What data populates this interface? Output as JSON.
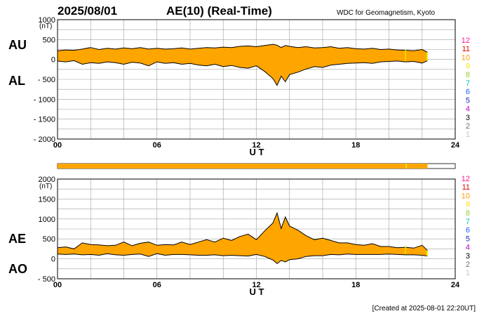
{
  "header": {
    "date": "2025/08/01",
    "title": "AE(10) (Real-Time)",
    "source": "WDC for Geomagnetism, Kyoto"
  },
  "footer": {
    "created": "[Created at 2025-08-01 22:20UT]"
  },
  "station_scale": {
    "labels": [
      "12",
      "11",
      "10",
      "9",
      "8",
      "7",
      "6",
      "5",
      "4",
      "3",
      "2",
      "1"
    ],
    "colors": [
      "#ff1493",
      "#e00000",
      "#ff9900",
      "#ffe000",
      "#9acd32",
      "#00c0c0",
      "#1e60ff",
      "#2020c0",
      "#c000c0",
      "#000000",
      "#707070",
      "#c8c8c8"
    ]
  },
  "colors": {
    "fill": "#ffa500",
    "station9": "#e6e600",
    "station10": "#ffa500",
    "grid": "#a0a0a0",
    "line": "#000000"
  },
  "chart_data": [
    {
      "type": "area",
      "panel": "AU/AL",
      "left_labels": [
        "AU",
        "AL"
      ],
      "ylabel": "(nT)",
      "xlabel": "U T",
      "ylim": [
        -2000,
        1000
      ],
      "xlim": [
        0,
        24
      ],
      "x_ticks": [
        "00",
        "06",
        "12",
        "18",
        "24"
      ],
      "y_ticks": [
        1000,
        500,
        0,
        -500,
        -1000,
        -1500,
        -2000
      ],
      "grid": true,
      "data_end_hour": 22.33,
      "series": [
        {
          "name": "AU",
          "x": [
            0,
            0.5,
            1,
            1.5,
            2,
            2.5,
            3,
            3.5,
            4,
            4.5,
            5,
            5.5,
            6,
            6.5,
            7,
            7.5,
            8,
            8.5,
            9,
            9.5,
            10,
            10.5,
            11,
            11.5,
            12,
            12.5,
            13,
            13.25,
            13.5,
            13.75,
            14,
            14.5,
            15,
            15.5,
            16,
            16.5,
            17,
            17.5,
            18,
            18.5,
            19,
            19.5,
            20,
            20.5,
            21,
            21.5,
            22,
            22.33
          ],
          "values": [
            220,
            240,
            230,
            260,
            300,
            250,
            280,
            260,
            290,
            270,
            300,
            260,
            280,
            260,
            270,
            290,
            260,
            280,
            300,
            290,
            310,
            300,
            330,
            340,
            320,
            350,
            380,
            360,
            300,
            350,
            330,
            300,
            320,
            290,
            300,
            320,
            280,
            300,
            270,
            260,
            280,
            250,
            260,
            240,
            230,
            220,
            250,
            180
          ]
        },
        {
          "name": "AL",
          "x": [
            0,
            0.5,
            1,
            1.5,
            2,
            2.5,
            3,
            3.5,
            4,
            4.5,
            5,
            5.5,
            6,
            6.5,
            7,
            7.5,
            8,
            8.5,
            9,
            9.5,
            10,
            10.5,
            11,
            11.5,
            12,
            12.5,
            13,
            13.25,
            13.5,
            13.75,
            14,
            14.5,
            15,
            15.5,
            16,
            16.5,
            17,
            17.5,
            18,
            18.5,
            19,
            19.5,
            20,
            20.5,
            21,
            21.5,
            22,
            22.33
          ],
          "values": [
            -40,
            -60,
            -30,
            -120,
            -80,
            -100,
            -60,
            -80,
            -120,
            -70,
            -90,
            -160,
            -60,
            -100,
            -80,
            -120,
            -100,
            -140,
            -160,
            -120,
            -180,
            -150,
            -200,
            -220,
            -160,
            -300,
            -480,
            -650,
            -420,
            -560,
            -380,
            -320,
            -240,
            -180,
            -200,
            -140,
            -120,
            -100,
            -90,
            -80,
            -100,
            -60,
            -50,
            -40,
            -60,
            -50,
            -90,
            -30
          ]
        }
      ]
    },
    {
      "type": "area",
      "panel": "AE/AO",
      "left_labels": [
        "AE",
        "AO"
      ],
      "ylabel": "(nT)",
      "xlabel": "U T",
      "ylim": [
        -500,
        2000
      ],
      "xlim": [
        0,
        24
      ],
      "x_ticks": [
        "00",
        "06",
        "12",
        "18",
        "24"
      ],
      "y_ticks": [
        2000,
        1500,
        1000,
        500,
        0,
        -500
      ],
      "grid": true,
      "data_end_hour": 22.33,
      "series": [
        {
          "name": "AE",
          "x": [
            0,
            0.5,
            1,
            1.5,
            2,
            2.5,
            3,
            3.5,
            4,
            4.5,
            5,
            5.5,
            6,
            6.5,
            7,
            7.5,
            8,
            8.5,
            9,
            9.5,
            10,
            10.5,
            11,
            11.5,
            12,
            12.5,
            13,
            13.25,
            13.5,
            13.75,
            14,
            14.5,
            15,
            15.5,
            16,
            16.5,
            17,
            17.5,
            18,
            18.5,
            19,
            19.5,
            20,
            20.5,
            21,
            21.5,
            22,
            22.33
          ],
          "values": [
            280,
            300,
            250,
            400,
            360,
            350,
            330,
            340,
            420,
            330,
            390,
            420,
            340,
            360,
            350,
            420,
            360,
            420,
            480,
            420,
            520,
            460,
            560,
            620,
            480,
            700,
            900,
            1150,
            760,
            1050,
            820,
            720,
            580,
            480,
            520,
            460,
            400,
            400,
            360,
            340,
            380,
            310,
            310,
            280,
            290,
            270,
            340,
            210
          ]
        },
        {
          "name": "AO",
          "x": [
            0,
            0.5,
            1,
            1.5,
            2,
            2.5,
            3,
            3.5,
            4,
            4.5,
            5,
            5.5,
            6,
            6.5,
            7,
            7.5,
            8,
            8.5,
            9,
            9.5,
            10,
            10.5,
            11,
            11.5,
            12,
            12.5,
            13,
            13.25,
            13.5,
            13.75,
            14,
            14.5,
            15,
            15.5,
            16,
            16.5,
            17,
            17.5,
            18,
            18.5,
            19,
            19.5,
            20,
            20.5,
            21,
            21.5,
            22,
            22.33
          ],
          "values": [
            120,
            110,
            120,
            100,
            110,
            90,
            130,
            100,
            90,
            110,
            120,
            60,
            130,
            90,
            110,
            110,
            100,
            90,
            90,
            100,
            80,
            90,
            80,
            70,
            110,
            60,
            -30,
            -120,
            -40,
            -80,
            -20,
            0,
            60,
            80,
            80,
            110,
            100,
            120,
            110,
            110,
            110,
            110,
            120,
            110,
            100,
            100,
            90,
            70
          ]
        }
      ]
    }
  ]
}
